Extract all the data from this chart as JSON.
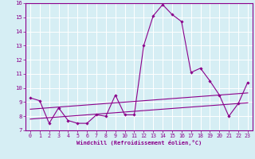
{
  "xlabel": "Windchill (Refroidissement éolien,°C)",
  "bg_color": "#d6eef4",
  "line_color": "#8b008b",
  "grid_color": "#ffffff",
  "x_values": [
    0,
    1,
    2,
    3,
    4,
    5,
    6,
    7,
    8,
    9,
    10,
    11,
    12,
    13,
    14,
    15,
    16,
    17,
    18,
    19,
    20,
    21,
    22,
    23
  ],
  "y_main": [
    9.3,
    9.1,
    7.5,
    8.6,
    7.7,
    7.5,
    7.5,
    8.1,
    8.0,
    9.5,
    8.1,
    8.1,
    13.0,
    15.1,
    15.9,
    15.2,
    14.7,
    11.1,
    11.4,
    10.5,
    9.5,
    8.0,
    8.9,
    10.4
  ],
  "y_line1": [
    7.8,
    7.85,
    7.9,
    7.95,
    8.0,
    8.05,
    8.1,
    8.15,
    8.2,
    8.25,
    8.3,
    8.35,
    8.4,
    8.45,
    8.5,
    8.55,
    8.6,
    8.65,
    8.7,
    8.75,
    8.8,
    8.85,
    8.9,
    8.95
  ],
  "y_line2": [
    8.5,
    8.55,
    8.6,
    8.65,
    8.7,
    8.75,
    8.8,
    8.85,
    8.9,
    8.95,
    9.0,
    9.05,
    9.1,
    9.15,
    9.2,
    9.25,
    9.3,
    9.35,
    9.4,
    9.45,
    9.5,
    9.55,
    9.6,
    9.65
  ],
  "ylim": [
    7,
    16
  ],
  "xlim": [
    -0.5,
    23.5
  ],
  "yticks": [
    7,
    8,
    9,
    10,
    11,
    12,
    13,
    14,
    15,
    16
  ],
  "xticks": [
    0,
    1,
    2,
    3,
    4,
    5,
    6,
    7,
    8,
    9,
    10,
    11,
    12,
    13,
    14,
    15,
    16,
    17,
    18,
    19,
    20,
    21,
    22,
    23
  ]
}
